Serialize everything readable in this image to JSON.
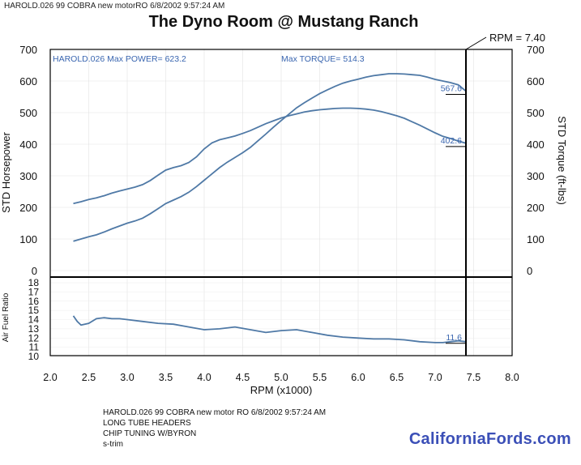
{
  "header": {
    "run_info": "HAROLD.026   99 COBRA new motorRO  6/8/2002 9:57:24 AM"
  },
  "title": "The Dyno Room @ Mustang Ranch",
  "rpm_marker_label": "RPM = 7.40",
  "colors": {
    "curve": "#4f79a6",
    "info_text": "#3a66b0",
    "axis": "#000000",
    "grid": "#cccccc",
    "brand": "#3b4fb7"
  },
  "footer": {
    "line1": "HAROLD.026   99 COBRA new motor    RO   6/8/2002 9:57:24 AM",
    "line2": "LONG TUBE HEADERS",
    "line3": "CHIP TUNING W/BYRON",
    "line4": "s-trim"
  },
  "brand": "CaliforniaFords.com",
  "chart_data": [
    {
      "type": "line",
      "title": "The Dyno Room @ Mustang Ranch",
      "info_left": "HAROLD.026   Max POWER= 623.2",
      "info_right": "Max TORQUE= 514.3",
      "xlabel": "RPM (x1000)",
      "ylabel_left": "STD Horsepower",
      "ylabel_right": "STD Torque (ft-lbs)",
      "xlim": [
        2.0,
        8.0
      ],
      "ylim": [
        0,
        700
      ],
      "x_ticks": [
        "2.0",
        "2.5",
        "3.0",
        "3.5",
        "4.0",
        "4.5",
        "5.0",
        "5.5",
        "6.0",
        "6.5",
        "7.0",
        "7.5",
        "8.0"
      ],
      "y_ticks_left": [
        "0",
        "100",
        "200",
        "300",
        "400",
        "500",
        "600",
        "700"
      ],
      "y_ticks_right": [
        "0",
        "100",
        "200",
        "300",
        "400",
        "500",
        "600",
        "700"
      ],
      "grid": true,
      "rpm_marker": 7.4,
      "series": [
        {
          "id": "hp",
          "x": [
            2.3,
            2.4,
            2.5,
            2.6,
            2.7,
            2.8,
            2.9,
            3.0,
            3.1,
            3.2,
            3.3,
            3.4,
            3.5,
            3.6,
            3.7,
            3.8,
            3.9,
            4.0,
            4.1,
            4.2,
            4.3,
            4.4,
            4.5,
            4.6,
            4.7,
            4.8,
            4.9,
            5.0,
            5.1,
            5.2,
            5.3,
            5.4,
            5.5,
            5.6,
            5.7,
            5.8,
            5.9,
            6.0,
            6.1,
            6.2,
            6.3,
            6.4,
            6.5,
            6.6,
            6.7,
            6.8,
            6.9,
            7.0,
            7.1,
            7.2,
            7.3,
            7.4
          ],
          "values": [
            93,
            100,
            107,
            113,
            122,
            132,
            141,
            150,
            157,
            166,
            180,
            196,
            212,
            223,
            234,
            248,
            266,
            286,
            306,
            326,
            343,
            358,
            373,
            390,
            411,
            432,
            454,
            475,
            495,
            515,
            531,
            546,
            560,
            572,
            583,
            593,
            600,
            606,
            612,
            617,
            620,
            623,
            623,
            622,
            620,
            618,
            612,
            605,
            600,
            595,
            588,
            568
          ],
          "end_label": "567.6"
        },
        {
          "id": "torque",
          "x": [
            2.3,
            2.4,
            2.5,
            2.6,
            2.7,
            2.8,
            2.9,
            3.0,
            3.1,
            3.2,
            3.3,
            3.4,
            3.5,
            3.6,
            3.7,
            3.8,
            3.9,
            4.0,
            4.1,
            4.2,
            4.3,
            4.4,
            4.5,
            4.6,
            4.7,
            4.8,
            4.9,
            5.0,
            5.1,
            5.2,
            5.3,
            5.4,
            5.5,
            5.6,
            5.7,
            5.8,
            5.9,
            6.0,
            6.1,
            6.2,
            6.3,
            6.4,
            6.5,
            6.6,
            6.7,
            6.8,
            6.9,
            7.0,
            7.1,
            7.2,
            7.3,
            7.4
          ],
          "values": [
            212,
            218,
            225,
            230,
            237,
            245,
            252,
            258,
            264,
            272,
            285,
            302,
            318,
            326,
            332,
            342,
            360,
            385,
            404,
            414,
            420,
            426,
            434,
            443,
            454,
            465,
            474,
            483,
            490,
            496,
            502,
            506,
            509,
            511,
            513,
            514,
            514,
            513,
            511,
            508,
            503,
            497,
            490,
            482,
            471,
            460,
            448,
            436,
            425,
            418,
            410,
            403
          ],
          "end_label": "402.6"
        }
      ]
    },
    {
      "type": "line",
      "ylabel": "Air Fuel Ratio",
      "xlim": [
        2.0,
        8.0
      ],
      "ylim": [
        10,
        18
      ],
      "y_ticks": [
        "10",
        "11",
        "12",
        "13",
        "14",
        "15",
        "16",
        "17",
        "18"
      ],
      "series": [
        {
          "id": "afr",
          "x": [
            2.3,
            2.35,
            2.4,
            2.5,
            2.6,
            2.7,
            2.8,
            2.9,
            3.0,
            3.2,
            3.4,
            3.6,
            3.8,
            4.0,
            4.2,
            4.4,
            4.6,
            4.8,
            5.0,
            5.2,
            5.4,
            5.6,
            5.8,
            6.0,
            6.2,
            6.4,
            6.6,
            6.8,
            7.0,
            7.1,
            7.2,
            7.3,
            7.4
          ],
          "values": [
            14.4,
            13.8,
            13.4,
            13.6,
            14.1,
            14.2,
            14.1,
            14.1,
            14.0,
            13.8,
            13.6,
            13.5,
            13.2,
            12.9,
            13.0,
            13.2,
            12.9,
            12.6,
            12.8,
            12.9,
            12.6,
            12.3,
            12.1,
            12.0,
            11.9,
            11.9,
            11.8,
            11.6,
            11.5,
            11.5,
            11.6,
            11.7,
            11.6
          ],
          "end_label": "11.6"
        }
      ]
    }
  ]
}
